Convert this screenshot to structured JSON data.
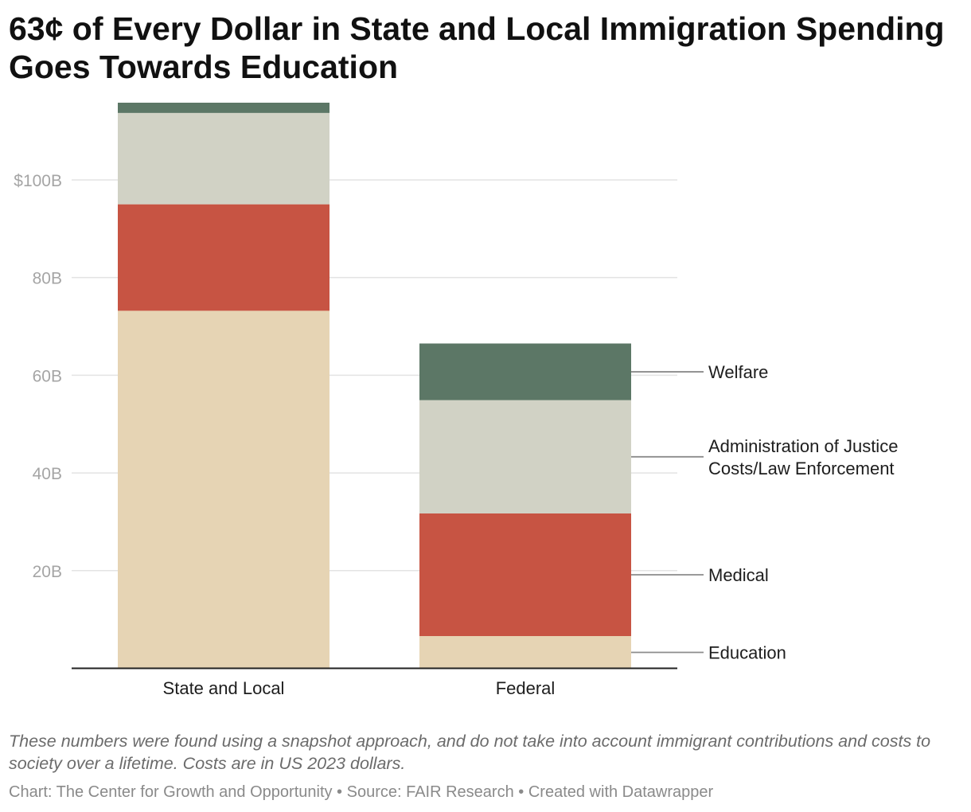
{
  "title": "63¢ of Every Dollar in State and Local Immigration Spending Goes Towards Education",
  "notes": "These numbers were found using a snapshot approach, and do not take into account immigrant contributions and costs to society over a lifetime. Costs are in US 2023 dollars.",
  "credits": {
    "chart": "Chart: The Center for Growth and Opportunity",
    "separator1": " • ",
    "source": "Source: FAIR Research",
    "separator2": " • ",
    "created_with": "Created with Datawrapper"
  },
  "chart_data": {
    "type": "bar",
    "stacked": true,
    "categories": [
      "State and Local",
      "Federal"
    ],
    "series": [
      {
        "name": "Education",
        "label_lines": [
          "Education"
        ],
        "color": "#e6d4b4",
        "values": [
          73.2,
          6.6
        ]
      },
      {
        "name": "Medical",
        "label_lines": [
          "Medical"
        ],
        "color": "#c75443",
        "values": [
          21.8,
          25.1
        ]
      },
      {
        "name": "Administration of Justice Costs/Law Enforcement",
        "label_lines": [
          "Administration of Justice",
          "Costs/Law Enforcement"
        ],
        "color": "#d1d2c5",
        "values": [
          18.7,
          23.2
        ]
      },
      {
        "name": "Welfare",
        "label_lines": [
          "Welfare"
        ],
        "color": "#5c7766",
        "values": [
          2.1,
          11.6
        ]
      }
    ],
    "ylim": [
      0,
      115.8
    ],
    "yticks": [
      20,
      40,
      60,
      80,
      100
    ],
    "ytick_labels": [
      "20B",
      "40B",
      "60B",
      "80B",
      "$100B"
    ],
    "grid": true,
    "legend": "right, direct labels next to Federal bar",
    "xlabel": "",
    "ylabel": ""
  }
}
